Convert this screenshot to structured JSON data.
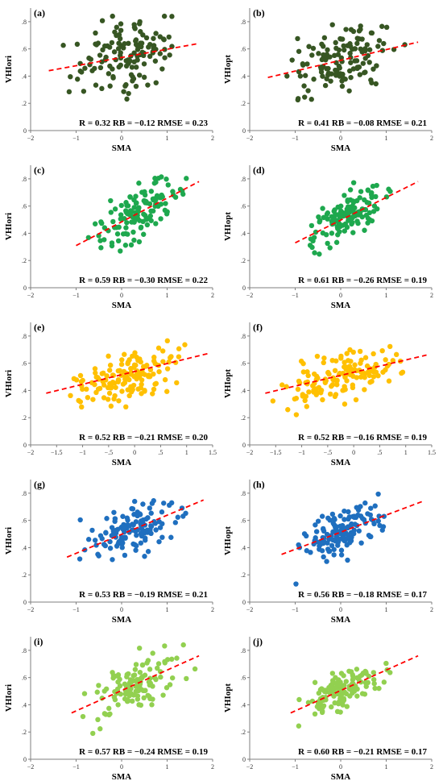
{
  "chart_data": [
    {
      "type": "scatter",
      "label": "(a)",
      "xlabel": "SMA",
      "ylabel": "VHIori",
      "stats": "R = 0.32   RB = −0.12   RMSE = 0.23",
      "color": "#375623",
      "xlim": [
        -2,
        2
      ],
      "ylim": [
        0,
        0.9
      ],
      "xticks": [
        -2,
        -1,
        0,
        1,
        2
      ],
      "yticks": [
        0,
        0.2,
        0.4,
        0.6,
        0.8
      ],
      "fit": [
        [
          -1.6,
          0.44
        ],
        [
          1.7,
          0.64
        ]
      ],
      "seed": 11,
      "n": 130,
      "xdomain": [
        -1.6,
        1.7
      ],
      "intercept": 0.54,
      "slope": 0.06,
      "noise": 0.13
    },
    {
      "type": "scatter",
      "label": "(b)",
      "xlabel": "SMA",
      "ylabel": "VHIopt",
      "stats": "R = 0.41   RB = −0.08   RMSE = 0.21",
      "color": "#375623",
      "xlim": [
        -2,
        2
      ],
      "ylim": [
        0,
        0.9
      ],
      "xticks": [
        -2,
        -1,
        0,
        1,
        2
      ],
      "yticks": [
        0,
        0.2,
        0.4,
        0.6,
        0.8
      ],
      "fit": [
        [
          -1.6,
          0.39
        ],
        [
          1.7,
          0.65
        ]
      ],
      "seed": 23,
      "n": 130,
      "xdomain": [
        -1.6,
        1.7
      ],
      "intercept": 0.52,
      "slope": 0.08,
      "noise": 0.12
    },
    {
      "type": "scatter",
      "label": "(c)",
      "xlabel": "SMA",
      "ylabel": "VHIori",
      "stats": "R = 0.59   RB = −0.30   RMSE = 0.22",
      "color": "#1EA84E",
      "xlim": [
        -2,
        2
      ],
      "ylim": [
        0,
        0.9
      ],
      "xticks": [
        -2,
        -1,
        0,
        1,
        2
      ],
      "yticks": [
        0,
        0.2,
        0.4,
        0.6,
        0.8
      ],
      "fit": [
        [
          -1.0,
          0.31
        ],
        [
          1.7,
          0.78
        ]
      ],
      "seed": 37,
      "n": 130,
      "xdomain": [
        -1.0,
        1.8
      ],
      "intercept": 0.48,
      "slope": 0.17,
      "noise": 0.09
    },
    {
      "type": "scatter",
      "label": "(d)",
      "xlabel": "SMA",
      "ylabel": "VHIopt",
      "stats": "R = 0.61   RB = −0.26   RMSE = 0.19",
      "color": "#1EA84E",
      "xlim": [
        -2,
        2
      ],
      "ylim": [
        0,
        0.9
      ],
      "xticks": [
        -2,
        -1,
        0,
        1,
        2
      ],
      "yticks": [
        0,
        0.2,
        0.4,
        0.6,
        0.8
      ],
      "fit": [
        [
          -1.0,
          0.33
        ],
        [
          1.7,
          0.78
        ]
      ],
      "seed": 41,
      "n": 130,
      "xdomain": [
        -1.0,
        1.3
      ],
      "intercept": 0.5,
      "slope": 0.17,
      "noise": 0.08
    },
    {
      "type": "scatter",
      "label": "(e)",
      "xlabel": "SMA",
      "ylabel": "VHIori",
      "stats": "R = 0.52   RB = −0.21   RMSE = 0.20",
      "color": "#FFC000",
      "xlim": [
        -2,
        1.5
      ],
      "ylim": [
        0,
        0.9
      ],
      "xticks": [
        -2,
        -1.5,
        -1,
        -0.5,
        0,
        0.5,
        1,
        1.5
      ],
      "yticks": [
        0,
        0.2,
        0.4,
        0.6,
        0.8
      ],
      "fit": [
        [
          -1.7,
          0.38
        ],
        [
          1.4,
          0.67
        ]
      ],
      "seed": 53,
      "n": 140,
      "xdomain": [
        -1.7,
        1.4
      ],
      "intercept": 0.52,
      "slope": 0.1,
      "noise": 0.09
    },
    {
      "type": "scatter",
      "label": "(f)",
      "xlabel": "SMA",
      "ylabel": "VHIopt",
      "stats": "R = 0.52   RB = −0.16   RMSE = 0.19",
      "color": "#FFC000",
      "xlim": [
        -2,
        1.5
      ],
      "ylim": [
        0,
        0.9
      ],
      "xticks": [
        -2,
        -1.5,
        -1,
        -0.5,
        0,
        0.5,
        1,
        1.5
      ],
      "yticks": [
        0,
        0.2,
        0.4,
        0.6,
        0.8
      ],
      "fit": [
        [
          -1.7,
          0.38
        ],
        [
          1.4,
          0.66
        ]
      ],
      "seed": 67,
      "n": 140,
      "xdomain": [
        -1.7,
        1.4
      ],
      "intercept": 0.52,
      "slope": 0.09,
      "noise": 0.08
    },
    {
      "type": "scatter",
      "label": "(g)",
      "xlabel": "SMA",
      "ylabel": "VHIori",
      "stats": "R = 0.53   RB = −0.19   RMSE = 0.21",
      "color": "#1F6FBF",
      "xlim": [
        -2,
        2
      ],
      "ylim": [
        0,
        0.9
      ],
      "xticks": [
        -2,
        -1,
        0,
        1,
        2
      ],
      "yticks": [
        0,
        0.2,
        0.4,
        0.6,
        0.8
      ],
      "fit": [
        [
          -1.2,
          0.33
        ],
        [
          1.8,
          0.75
        ]
      ],
      "seed": 71,
      "n": 130,
      "xdomain": [
        -1.2,
        1.6
      ],
      "intercept": 0.5,
      "slope": 0.14,
      "noise": 0.09
    },
    {
      "type": "scatter",
      "label": "(h)",
      "xlabel": "SMA",
      "ylabel": "VHIopt",
      "stats": "R = 0.56   RB = −0.18   RMSE = 0.17",
      "color": "#1F6FBF",
      "xlim": [
        -2,
        2
      ],
      "ylim": [
        0,
        0.9
      ],
      "xticks": [
        -2,
        -1,
        0,
        1,
        2
      ],
      "yticks": [
        0,
        0.2,
        0.4,
        0.6,
        0.8
      ],
      "fit": [
        [
          -1.3,
          0.35
        ],
        [
          1.8,
          0.74
        ]
      ],
      "seed": 83,
      "n": 130,
      "xdomain": [
        -1.2,
        1.3
      ],
      "intercept": 0.51,
      "slope": 0.13,
      "noise": 0.08
    },
    {
      "type": "scatter",
      "label": "(i)",
      "xlabel": "SMA",
      "ylabel": "VHIori",
      "stats": "R = 0.57   RB = −0.24   RMSE = 0.19",
      "color": "#92D050",
      "xlim": [
        -2,
        2
      ],
      "ylim": [
        0,
        0.9
      ],
      "xticks": [
        -2,
        -1,
        0,
        1,
        2
      ],
      "yticks": [
        0,
        0.2,
        0.4,
        0.6,
        0.8
      ],
      "fit": [
        [
          -1.1,
          0.34
        ],
        [
          1.7,
          0.76
        ]
      ],
      "seed": 97,
      "n": 120,
      "xdomain": [
        -1.2,
        1.7
      ],
      "intercept": 0.5,
      "slope": 0.15,
      "noise": 0.09
    },
    {
      "type": "scatter",
      "label": "(j)",
      "xlabel": "SMA",
      "ylabel": "VHIopt",
      "stats": "R = 0.60   RB = −0.21   RMSE = 0.17",
      "color": "#92D050",
      "xlim": [
        -2,
        2
      ],
      "ylim": [
        0,
        0.9
      ],
      "xticks": [
        -2,
        -1,
        0,
        1,
        2
      ],
      "yticks": [
        0,
        0.2,
        0.4,
        0.6,
        0.8
      ],
      "fit": [
        [
          -1.1,
          0.34
        ],
        [
          1.7,
          0.76
        ]
      ],
      "seed": 101,
      "n": 130,
      "xdomain": [
        -1.1,
        1.3
      ],
      "intercept": 0.5,
      "slope": 0.15,
      "noise": 0.07
    }
  ]
}
